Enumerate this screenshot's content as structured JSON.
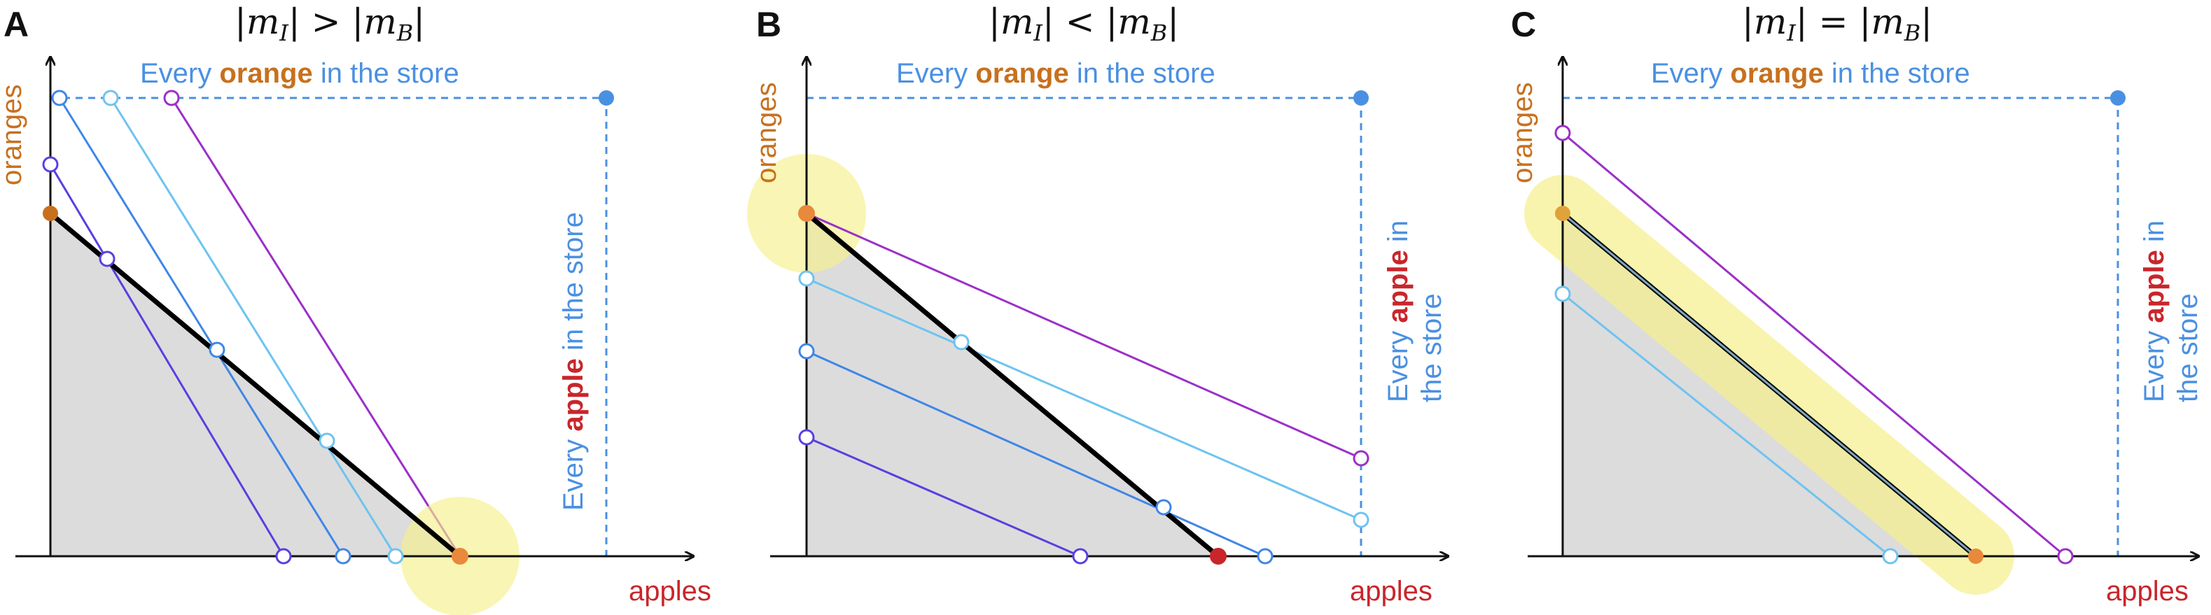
{
  "axes": {
    "x_label": "apples",
    "y_label": "oranges"
  },
  "store_label": {
    "before": "Every ",
    "orange_word": "orange",
    "after": " in the store",
    "apple_before": "Every ",
    "apple_word": "apple",
    "apple_after": " in the store",
    "apple_line1_before": "Every ",
    "apple_line1_after": " in",
    "apple_line2": "the store"
  },
  "panels": [
    {
      "letter": "A",
      "title_lhs": "|m",
      "title_rel": ">",
      "sub_i": "I",
      "sub_b": "B",
      "title_rhs": "|m"
    },
    {
      "letter": "B",
      "title_lhs": "|m",
      "title_rel": "<",
      "sub_i": "I",
      "sub_b": "B",
      "title_rhs": "|m"
    },
    {
      "letter": "C",
      "title_lhs": "|m",
      "title_rel": "=",
      "sub_i": "I",
      "sub_b": "B",
      "title_rhs": "|m"
    }
  ],
  "colors": {
    "budget_line": "#000000",
    "feasible_fill": "#dcdcdc",
    "store_box": "#4a90e2",
    "iso_lines": [
      "#5b3ee0",
      "#3f86e6",
      "#6ec3f0",
      "#9b30c8"
    ],
    "optimum": "#e8893c",
    "highlight": "#f6f08c",
    "apple_word": "#c8262b",
    "orange_word": "#c8701e"
  }
}
